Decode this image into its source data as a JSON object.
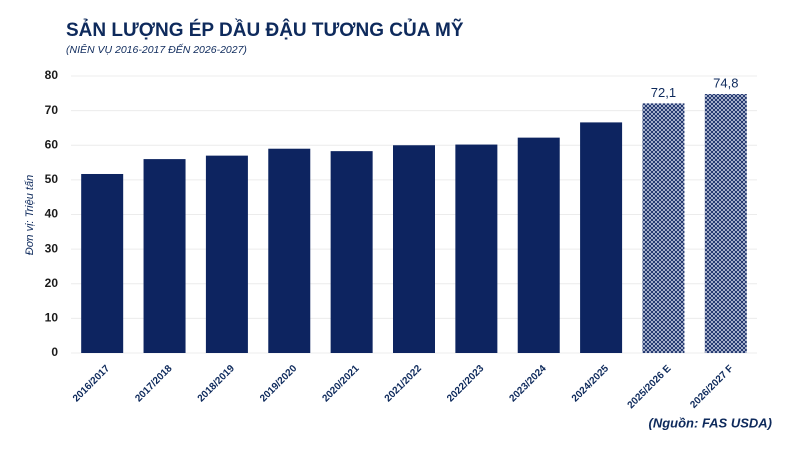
{
  "chart_data": {
    "type": "bar",
    "title": "SẢN LƯỢNG ÉP DẦU ĐẬU TƯƠNG CỦA MỸ",
    "subtitle": "(NIÊN VỤ 2016-2017 ĐẾN 2026-2027)",
    "y_label": "Đơn vị: Triệu tấn",
    "source": "(Nguồn: FAS USDA)",
    "categories": [
      "2016/2017",
      "2017/2018",
      "2018/2019",
      "2019/2020",
      "2020/2021",
      "2021/2022",
      "2022/2023",
      "2023/2024",
      "2024/2025",
      "2025/2026 E",
      "2026/2027 F"
    ],
    "values": [
      51.7,
      56.0,
      57.0,
      59.0,
      58.3,
      60.0,
      60.2,
      62.2,
      66.6,
      72.1,
      74.8
    ],
    "value_labels": [
      null,
      null,
      null,
      null,
      null,
      null,
      null,
      null,
      null,
      "72,1",
      "74,8"
    ],
    "hatched": [
      false,
      false,
      false,
      false,
      false,
      false,
      false,
      false,
      false,
      true,
      true
    ],
    "color": "#0d2460",
    "ylim": [
      0,
      80
    ],
    "yticks": [
      0,
      10,
      20,
      30,
      40,
      50,
      60,
      70,
      80
    ],
    "grid": true
  }
}
